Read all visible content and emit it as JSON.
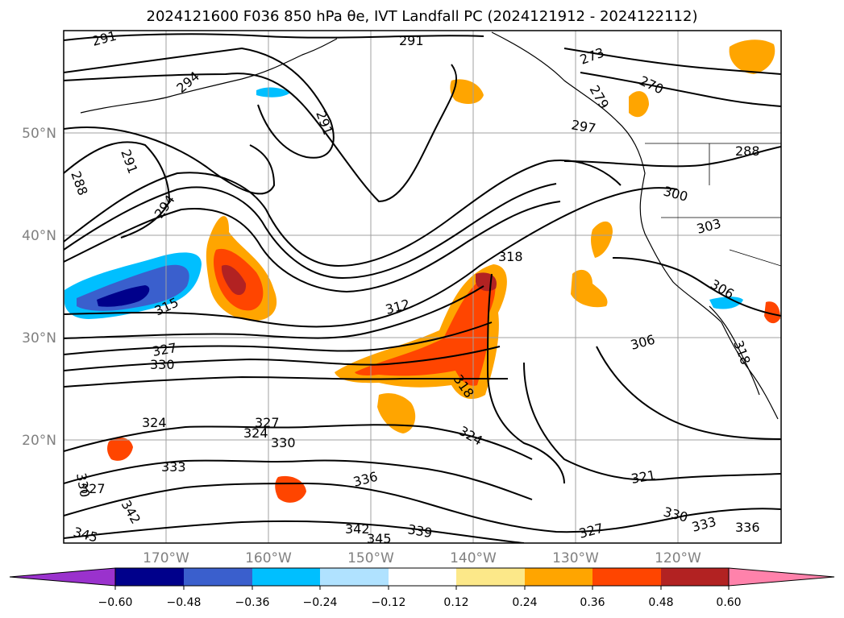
{
  "map": {
    "title": "2024121600 F036 850 hPa θe, IVT Landfall PC (2024121912 - 2024122112)",
    "lat_labels": [
      "50°N",
      "40°N",
      "30°N",
      "20°N"
    ],
    "lon_labels": [
      "170°W",
      "160°W",
      "150°W",
      "140°W",
      "130°W",
      "120°W"
    ],
    "contour_labels": [
      "291",
      "294",
      "291",
      "291",
      "288",
      "294",
      "291",
      "273",
      "270",
      "279",
      "297",
      "288",
      "300",
      "303",
      "318",
      "306",
      "315",
      "312",
      "327",
      "330",
      "306",
      "318",
      "318",
      "324",
      "324",
      "327",
      "330",
      "324",
      "333",
      "330",
      "327",
      "336",
      "342",
      "345",
      "342",
      "345",
      "339",
      "321",
      "330",
      "333",
      "336",
      "327"
    ],
    "colorbar": {
      "ticks": [
        "−0.60",
        "−0.48",
        "−0.36",
        "−0.24",
        "−0.12",
        "0.12",
        "0.24",
        "0.36",
        "0.48",
        "0.60"
      ],
      "colors": [
        "#9a32cd",
        "#00008b",
        "#3a5fcd",
        "#00bfff",
        "#b0e2ff",
        "#ffffff",
        "#fce889",
        "#ffa500",
        "#ff4500",
        "#b22222",
        "#ff82ab"
      ]
    }
  }
}
